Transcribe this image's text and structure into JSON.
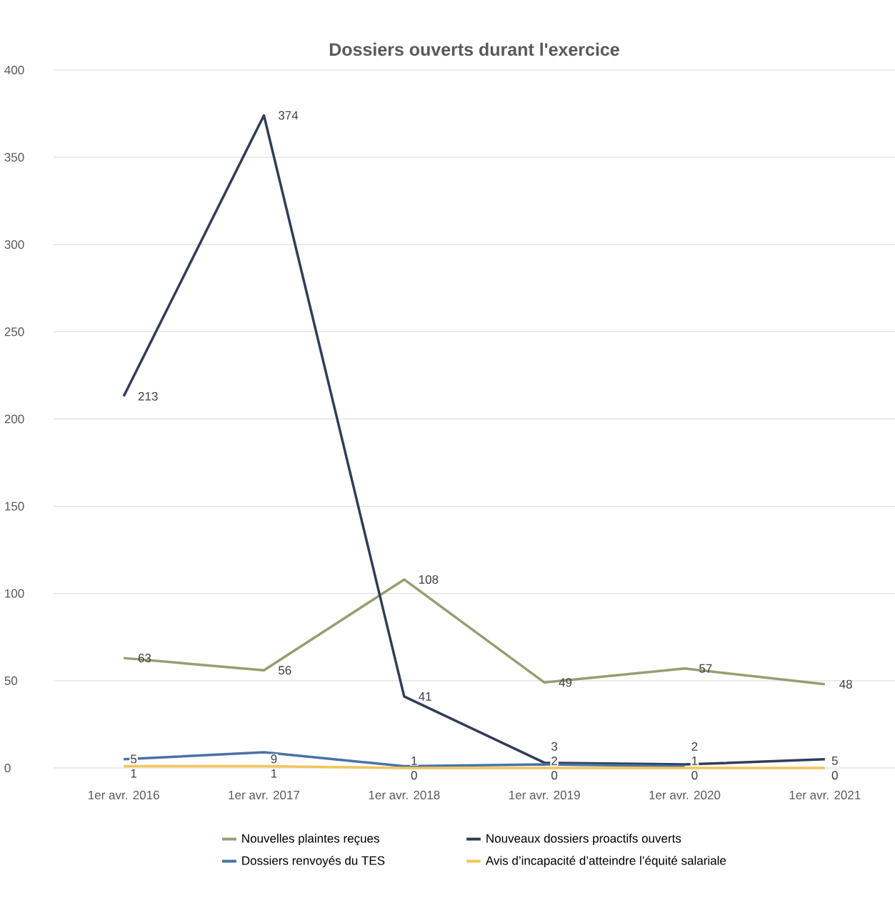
{
  "chart_data": {
    "type": "line",
    "title": "Dossiers ouverts durant l'exercice",
    "categories": [
      "1er avr. 2016",
      "1er avr. 2017",
      "1er avr. 2018",
      "1er avr. 2019",
      "1er avr. 2020",
      "1er avr. 2021"
    ],
    "series": [
      {
        "name": "Nouvelles plaintes reçues",
        "color": "#979e72",
        "values": [
          63,
          56,
          108,
          49,
          57,
          48
        ]
      },
      {
        "name": "Nouveaux dossiers proactifs ouverts",
        "color": "#2f3e57",
        "values": [
          213,
          374,
          41,
          3,
          2,
          5
        ]
      },
      {
        "name": "Dossiers renvoyés du TES",
        "color": "#4a72a8",
        "values": [
          5,
          9,
          1,
          2,
          1,
          null
        ]
      },
      {
        "name": "Avis d’incapacité d’atteindre l’équité salariale",
        "color": "#f2c45a",
        "values": [
          1,
          1,
          0,
          0,
          0,
          0
        ]
      }
    ],
    "ylim": [
      0,
      400
    ],
    "yticks": [
      0,
      50,
      100,
      150,
      200,
      250,
      300,
      350,
      400
    ],
    "grid": "y",
    "legend": "bottom",
    "marker": "none",
    "line_style": "solid",
    "data_labels": true
  }
}
